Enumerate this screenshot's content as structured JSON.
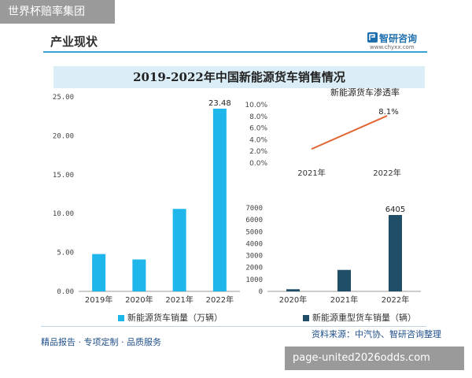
{
  "overlay_top_label": "世界杯赔率集团",
  "section_title": "产业现状",
  "logo": {
    "name": "智研咨询",
    "url": "www.chyxx.com"
  },
  "banner_title": "2019-2022年中国新能源货车销售情况",
  "footer_left": "精品报告 · 专项定制 · 品质服务",
  "footer_right": "资料来源：中汽协、智研咨询整理",
  "overlay_bottom_label": "page-united2026odds.com",
  "colors": {
    "bar_light": "#1fb6ec",
    "bar_dark": "#1f4e66",
    "line": "#e06530",
    "banner_bg": "#dbeef7"
  },
  "chart_data": [
    {
      "type": "bar",
      "categories": [
        "2019年",
        "2020年",
        "2021年",
        "2022年"
      ],
      "series": [
        {
          "name": "新能源货车销量（万辆）",
          "values": [
            4.8,
            4.1,
            10.6,
            23.48
          ]
        }
      ],
      "ylim": [
        0,
        25
      ],
      "yticks": [
        "0.00",
        "5.00",
        "10.00",
        "15.00",
        "20.00",
        "25.00"
      ],
      "data_labels": {
        "3": "23.48"
      },
      "legend": "bottom"
    },
    {
      "type": "line",
      "title": "新能源货车渗透率",
      "categories": [
        "2021年",
        "2022年"
      ],
      "series": [
        {
          "name": "",
          "values": [
            2.4,
            8.1
          ]
        }
      ],
      "ylim": [
        0,
        10
      ],
      "yticks": [
        "0.0%",
        "2.0%",
        "4.0%",
        "6.0%",
        "8.0%",
        "10.0%"
      ],
      "data_labels": {
        "1": "8.1%"
      }
    },
    {
      "type": "bar",
      "categories": [
        "2020年",
        "2021年",
        "2022年"
      ],
      "series": [
        {
          "name": "新能源重型货车销量（辆）",
          "values": [
            180,
            1800,
            6405
          ]
        }
      ],
      "ylim": [
        0,
        7000
      ],
      "yticks": [
        "0",
        "1000",
        "2000",
        "3000",
        "4000",
        "5000",
        "6000",
        "7000"
      ],
      "data_labels": {
        "2": "6405"
      },
      "legend": "bottom"
    }
  ]
}
